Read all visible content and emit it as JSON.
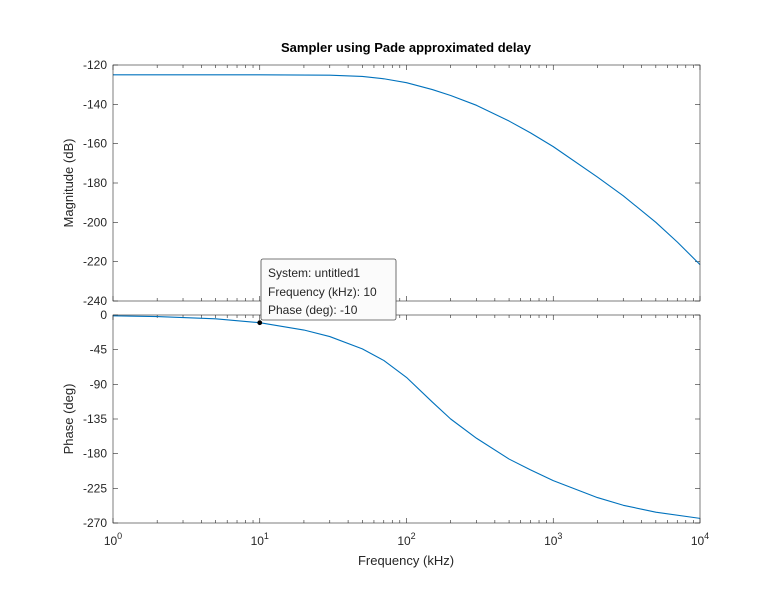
{
  "chart_data": [
    {
      "type": "line",
      "panel": "magnitude",
      "title": "Sampler using Pade approximated delay",
      "ylabel": "Magnitude (dB)",
      "xlabel": "",
      "xscale": "log",
      "xlim": [
        1,
        10000
      ],
      "ylim": [
        -240,
        -120
      ],
      "yticks": [
        -120,
        -140,
        -160,
        -180,
        -200,
        -220,
        -240
      ],
      "ytick_labels": [
        "-120",
        "-140",
        "-160",
        "-180",
        "-200",
        "-220",
        "-240"
      ],
      "grid": false,
      "series": [
        {
          "color": "#0072BD",
          "x": [
            1,
            10,
            30,
            50,
            70,
            100,
            150,
            200,
            300,
            500,
            700,
            1000,
            2000,
            3000,
            5000,
            7000,
            10000
          ],
          "values": [
            -125,
            -125,
            -125.2,
            -125.8,
            -127,
            -129,
            -132.5,
            -135.5,
            -140.5,
            -148.5,
            -154.5,
            -161.5,
            -177,
            -186.5,
            -200,
            -210,
            -221.5
          ]
        }
      ]
    },
    {
      "type": "line",
      "panel": "phase",
      "title": "",
      "ylabel": "Phase (deg)",
      "xlabel": "Frequency  (kHz)",
      "xscale": "log",
      "xlim": [
        1,
        10000
      ],
      "ylim": [
        -270,
        0
      ],
      "yticks": [
        0,
        -45,
        -90,
        -135,
        -180,
        -225,
        -270
      ],
      "ytick_labels": [
        "0",
        "-45",
        "-90",
        "-135",
        "-180",
        "-225",
        "-270"
      ],
      "xtick_base": "10",
      "xtick_exponents": [
        "0",
        "1",
        "2",
        "3",
        "4"
      ],
      "grid": false,
      "series": [
        {
          "color": "#0072BD",
          "x": [
            1,
            2,
            5,
            10,
            20,
            30,
            50,
            70,
            100,
            150,
            200,
            300,
            500,
            700,
            1000,
            2000,
            3000,
            5000,
            10000
          ],
          "values": [
            -1,
            -2,
            -5,
            -10,
            -19.5,
            -28,
            -44,
            -59,
            -81,
            -113,
            -135,
            -160,
            -187,
            -201,
            -215,
            -237,
            -247,
            -256,
            -264
          ]
        }
      ],
      "datatip": {
        "x": 10,
        "y": -10,
        "lines": [
          "System: untitled1",
          "Frequency (kHz): 10",
          "Phase (deg): -10"
        ]
      }
    }
  ]
}
